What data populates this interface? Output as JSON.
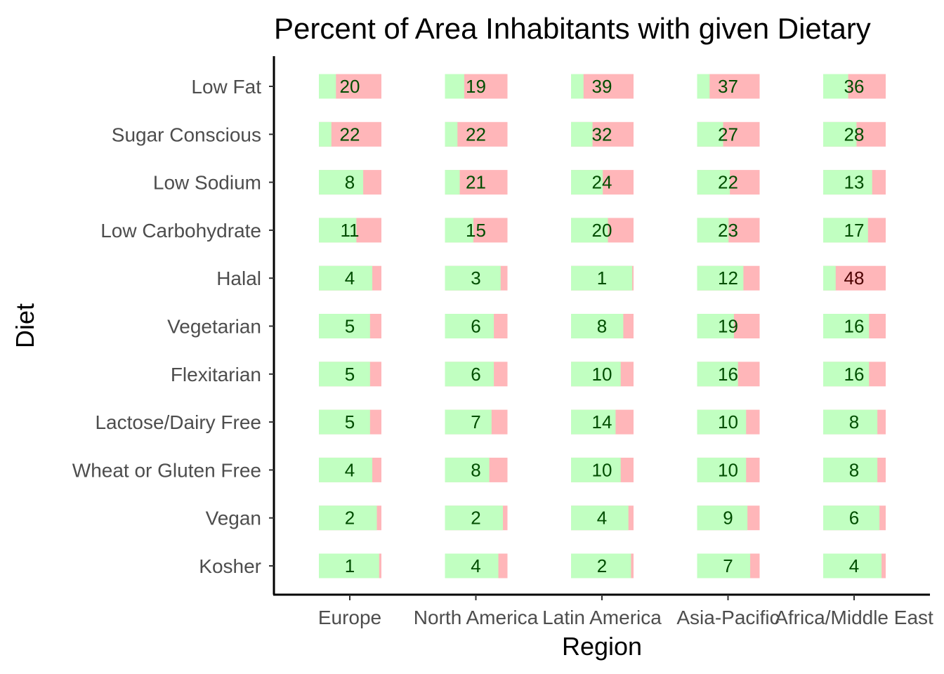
{
  "chart_data": {
    "type": "bar",
    "title": "Percent of Area Inhabitants with given Dietary",
    "xlabel": "Region",
    "ylabel": "Diet",
    "regions": [
      "Europe",
      "North America",
      "Latin America",
      "Asia-Pacific",
      "Africa/Middle East"
    ],
    "diets": [
      "Low Fat",
      "Sugar Conscious",
      "Low Sodium",
      "Low Carbohydrate",
      "Halal",
      "Vegetarian",
      "Flexitarian",
      "Lactose/Dairy Free",
      "Wheat or Gluten Free",
      "Vegan",
      "Kosher"
    ],
    "values": [
      [
        20,
        19,
        39,
        37,
        36
      ],
      [
        22,
        22,
        32,
        27,
        28
      ],
      [
        8,
        21,
        24,
        22,
        13
      ],
      [
        11,
        15,
        20,
        23,
        17
      ],
      [
        4,
        3,
        1,
        12,
        48
      ],
      [
        5,
        6,
        8,
        19,
        16
      ],
      [
        5,
        6,
        10,
        16,
        16
      ],
      [
        5,
        7,
        14,
        10,
        8
      ],
      [
        4,
        8,
        10,
        10,
        8
      ],
      [
        2,
        2,
        4,
        9,
        6
      ],
      [
        1,
        4,
        2,
        7,
        4
      ]
    ],
    "colors": {
      "remainder_bar": "#ffb6b9",
      "value_bar": "#c1ffc1",
      "label_low": "#004d00",
      "label_high": "#4d0000"
    },
    "grid": false,
    "legend": "none"
  }
}
